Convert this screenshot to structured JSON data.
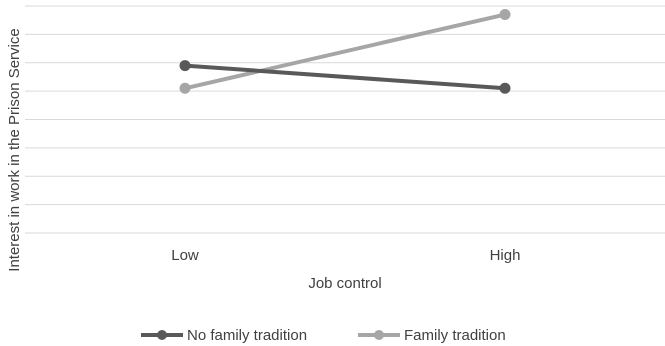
{
  "chart_data": {
    "type": "line",
    "title": "",
    "xlabel": "Job control",
    "ylabel": "Interest in work in the Prison Service",
    "categories": [
      "Low",
      "High"
    ],
    "ylim": [
      0,
      8
    ],
    "grid": true,
    "y_tick_labels_shown": false,
    "legend_position": "bottom",
    "series": [
      {
        "name": "No family tradition",
        "values": [
          5.9,
          5.1
        ],
        "color": "#595959"
      },
      {
        "name": "Family tradition",
        "values": [
          5.1,
          7.7
        ],
        "color": "#a6a6a6"
      }
    ]
  }
}
